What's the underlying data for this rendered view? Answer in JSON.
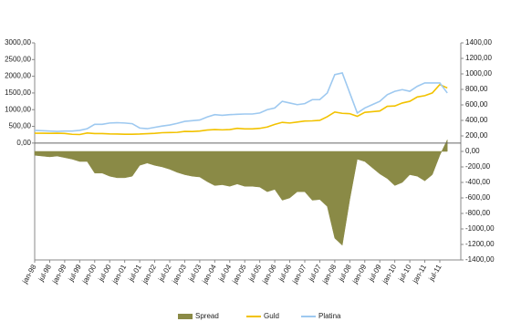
{
  "chart_data": {
    "type": "line",
    "categories": [
      "jan-98",
      null,
      "jul-98",
      null,
      "jan-99",
      null,
      "jul-99",
      null,
      "jan-00",
      null,
      "jul-00",
      null,
      "jan-01",
      null,
      "jul-01",
      null,
      "jan-02",
      null,
      "jul-02",
      null,
      "jan-03",
      null,
      "jul-03",
      null,
      "jan-04",
      null,
      "jul-04",
      null,
      "jan-05",
      null,
      "jul-05",
      null,
      "jan-06",
      null,
      "jul-06",
      null,
      "jan-07",
      null,
      "jul-07",
      null,
      "jan-08",
      null,
      "jul-08",
      null,
      "jan-09",
      null,
      "jul-09",
      null,
      "jan-10",
      null,
      "jul-10",
      null,
      "jan-11",
      null,
      "jul-11",
      null
    ],
    "series": [
      {
        "name": "Spread",
        "color": "#8a8a46",
        "axis": "y2",
        "kind": "area",
        "values": [
          -50,
          -60,
          -70,
          -60,
          -80,
          -100,
          -130,
          -130,
          -280,
          -280,
          -320,
          -340,
          -340,
          -320,
          -180,
          -150,
          -180,
          -200,
          -230,
          -270,
          -300,
          -320,
          -330,
          -390,
          -440,
          -430,
          -450,
          -420,
          -450,
          -450,
          -460,
          -520,
          -490,
          -630,
          -600,
          -520,
          -520,
          -630,
          -620,
          -710,
          -1120,
          -1210,
          -620,
          -100,
          -130,
          -210,
          -290,
          -350,
          -440,
          -400,
          -300,
          -320,
          -380,
          -300,
          -50,
          150
        ]
      },
      {
        "name": "Guld",
        "color": "#f2c200",
        "kind": "line",
        "values": [
          295,
          295,
          290,
          295,
          287,
          262,
          255,
          300,
          285,
          285,
          275,
          270,
          265,
          265,
          270,
          280,
          290,
          310,
          315,
          320,
          350,
          345,
          360,
          390,
          405,
          395,
          405,
          440,
          425,
          425,
          440,
          480,
          560,
          620,
          600,
          630,
          660,
          665,
          680,
          790,
          930,
          890,
          880,
          800,
          920,
          940,
          960,
          1100,
          1110,
          1200,
          1250,
          1380,
          1420,
          1500,
          1750,
          1650
        ]
      },
      {
        "name": "Platina",
        "color": "#9ec9f0",
        "kind": "line",
        "values": [
          380,
          370,
          360,
          350,
          360,
          360,
          380,
          430,
          560,
          560,
          600,
          610,
          600,
          580,
          450,
          430,
          470,
          510,
          540,
          590,
          650,
          670,
          690,
          780,
          850,
          830,
          850,
          860,
          870,
          870,
          900,
          1000,
          1050,
          1250,
          1200,
          1150,
          1180,
          1300,
          1300,
          1500,
          2050,
          2100,
          1500,
          900,
          1050,
          1150,
          1250,
          1450,
          1550,
          1600,
          1550,
          1700,
          1800,
          1800,
          1800,
          1500
        ]
      }
    ],
    "ylim": [
      -3500,
      3000
    ],
    "yticks": [
      {
        "value": 0,
        "label": "0,00"
      },
      {
        "value": 500,
        "label": "500,00"
      },
      {
        "value": 1000,
        "label": "1000,00"
      },
      {
        "value": 1500,
        "label": "1500,00"
      },
      {
        "value": 2000,
        "label": "2000,00"
      },
      {
        "value": 2500,
        "label": "2500,00"
      },
      {
        "value": 3000,
        "label": "3000,00"
      }
    ],
    "y2lim": [
      -1400,
      1400
    ],
    "y2ticks": [
      {
        "value": -1400,
        "label": "-1400,00"
      },
      {
        "value": -1200,
        "label": "-1200,00"
      },
      {
        "value": -1000,
        "label": "-1000,00"
      },
      {
        "value": -800,
        "label": "-800,00"
      },
      {
        "value": -600,
        "label": "-600,00"
      },
      {
        "value": -400,
        "label": "-400,00"
      },
      {
        "value": -200,
        "label": "-200,00"
      },
      {
        "value": 0,
        "label": "0,00"
      },
      {
        "value": 200,
        "label": "200,00"
      },
      {
        "value": 400,
        "label": "400,00"
      },
      {
        "value": 600,
        "label": "600,00"
      },
      {
        "value": 800,
        "label": "800,00"
      },
      {
        "value": 1000,
        "label": "1000,00"
      },
      {
        "value": 1200,
        "label": "1200,00"
      },
      {
        "value": 1400,
        "label": "1400,00"
      }
    ],
    "legend": "bottom"
  }
}
